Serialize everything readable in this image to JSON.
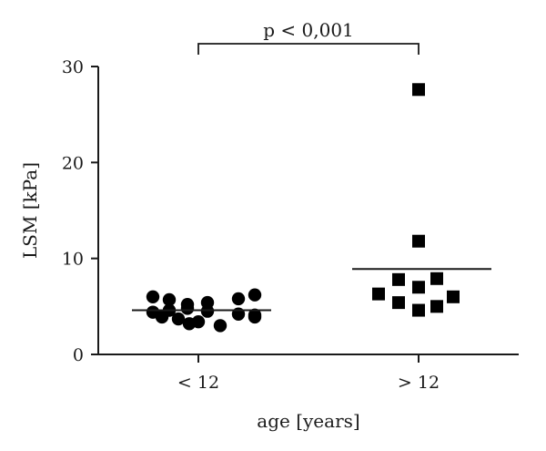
{
  "chart_data": {
    "type": "scatter",
    "title": "",
    "xlabel": "age [years]",
    "ylabel": "LSM [kPa]",
    "ylim": [
      0,
      30
    ],
    "yticks": [
      0,
      10,
      20,
      30
    ],
    "categories": [
      "< 12",
      "> 12"
    ],
    "annotation": "p < 0,001",
    "grid": false,
    "series": [
      {
        "category": "< 12",
        "marker": "circle",
        "mean": 4.6,
        "values": [
          6.0,
          5.7,
          5.2,
          5.4,
          5.8,
          6.2,
          4.4,
          4.6,
          4.8,
          4.5,
          4.2,
          4.1,
          3.9,
          3.7,
          3.4,
          3.2,
          3.0,
          3.9
        ]
      },
      {
        "category": "> 12",
        "marker": "square",
        "mean": 8.9,
        "values": [
          27.6,
          11.8,
          7.8,
          7.9,
          7.0,
          6.3,
          6.0,
          5.4,
          5.0,
          4.6
        ]
      }
    ]
  }
}
